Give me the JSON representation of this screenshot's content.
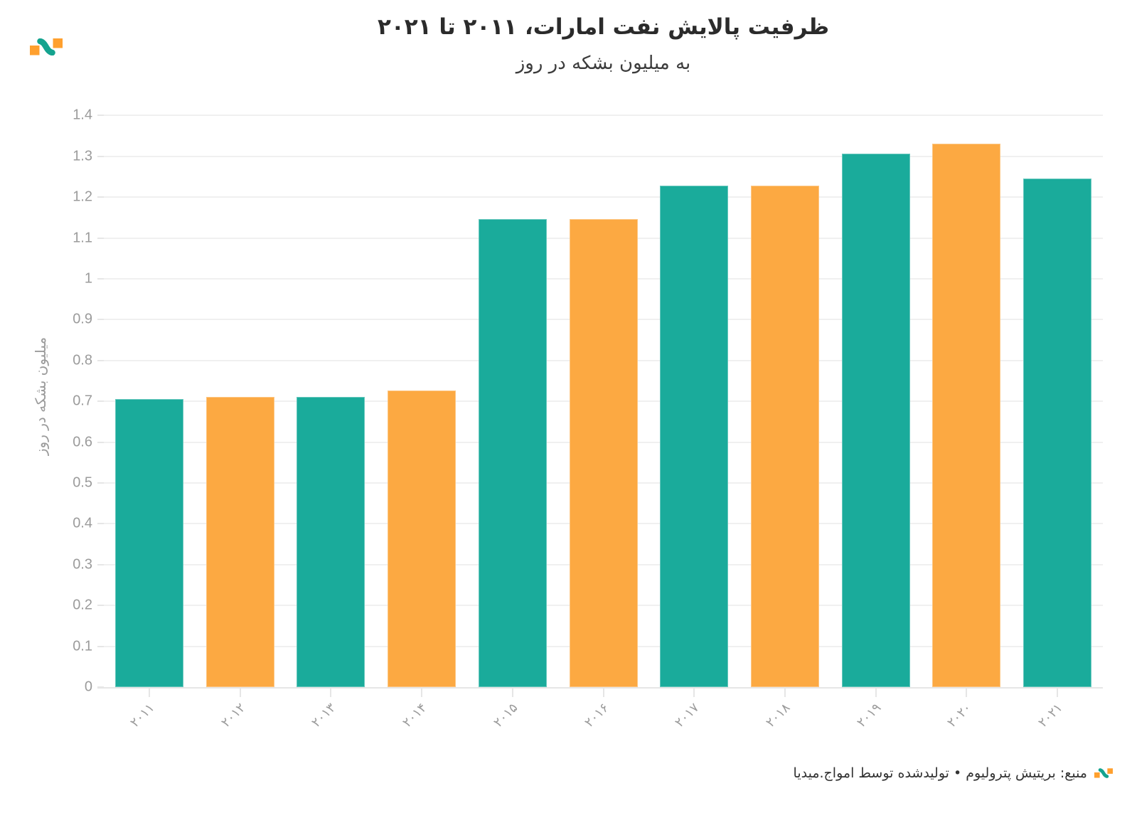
{
  "brand": {
    "teal": "#1AAB9B",
    "orange": "#FCA942",
    "logo_square_color": "#FFA02E",
    "logo_wave_color": "#14A38F"
  },
  "chart_data": {
    "type": "bar",
    "title": "ظرفیت پالایش نفت امارات، ۲۰۱۱ تا ۲۰۲۱",
    "subtitle": "به میلیون بشکه در روز",
    "ylabel": "میلیون بشکه در روز",
    "xlabel": "",
    "source": "منبع: بریتیش پترولیوم • تولیدشده توسط امواج.میدیا",
    "categories": [
      "۲۰۱۱",
      "۲۰۱۲",
      "۲۰۱۳",
      "۲۰۱۴",
      "۲۰۱۵",
      "۲۰۱۶",
      "۲۰۱۷",
      "۲۰۱۸",
      "۲۰۱۹",
      "۲۰۲۰",
      "۲۰۲۱"
    ],
    "values": [
      0.706,
      0.711,
      0.711,
      0.727,
      1.147,
      1.147,
      1.229,
      1.229,
      1.306,
      1.331,
      1.246
    ],
    "bar_colors_alternate": [
      "#1AAB9B",
      "#FCA942"
    ],
    "ylim": [
      0,
      1.4
    ],
    "y_tick_step": 0.1,
    "y_tick_labels": [
      "0",
      "0.1",
      "0.2",
      "0.3",
      "0.4",
      "0.5",
      "0.6",
      "0.7",
      "0.8",
      "0.9",
      "1",
      "1.1",
      "1.2",
      "1.3",
      "1.4"
    ],
    "grid": "horizontal",
    "grid_color": "#f0f0f0",
    "axis_color": "#e6e6e6",
    "tick_label_color": "#9b9b9b",
    "legend": "none"
  }
}
